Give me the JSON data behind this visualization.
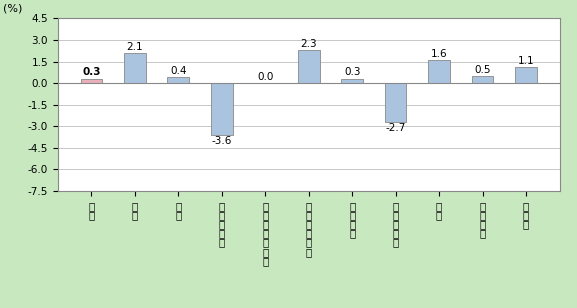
{
  "categories": [
    "総\n合",
    "食\n料",
    "住\n居",
    "光\n熱\n・\n水\n道",
    "家\n具\n・\n家\n事\n用\n品",
    "被\n服\n及\nび\n履\n物",
    "保\n健\n医\n療",
    "交\n通\n・\n通\n信",
    "教\n育",
    "教\n養\n娛\n楽",
    "諸\n雑\n費"
  ],
  "values": [
    0.3,
    2.1,
    0.4,
    -3.6,
    0.0,
    2.3,
    0.3,
    -2.7,
    1.6,
    0.5,
    1.1
  ],
  "bar_color_positive": "#aac4e0",
  "bar_color_first": "#e8b0b8",
  "ylabel": "(%)",
  "ylim": [
    -7.5,
    4.5
  ],
  "yticks": [
    4.5,
    3.0,
    1.5,
    0.0,
    -1.5,
    -3.0,
    -4.5,
    -6.0,
    -7.5
  ],
  "ytick_labels": [
    "4.5",
    "3.0",
    "1.5",
    "0.0",
    "-1.5",
    "-3.0",
    "-4.5",
    "-6.0",
    "-7.5"
  ],
  "background_color": "#c8e8c0",
  "plot_bg_color": "#ffffff",
  "grid_color": "#b0b0b0",
  "label_fontsize": 7.5,
  "value_fontsize": 7.5,
  "ylabel_fontsize": 8
}
